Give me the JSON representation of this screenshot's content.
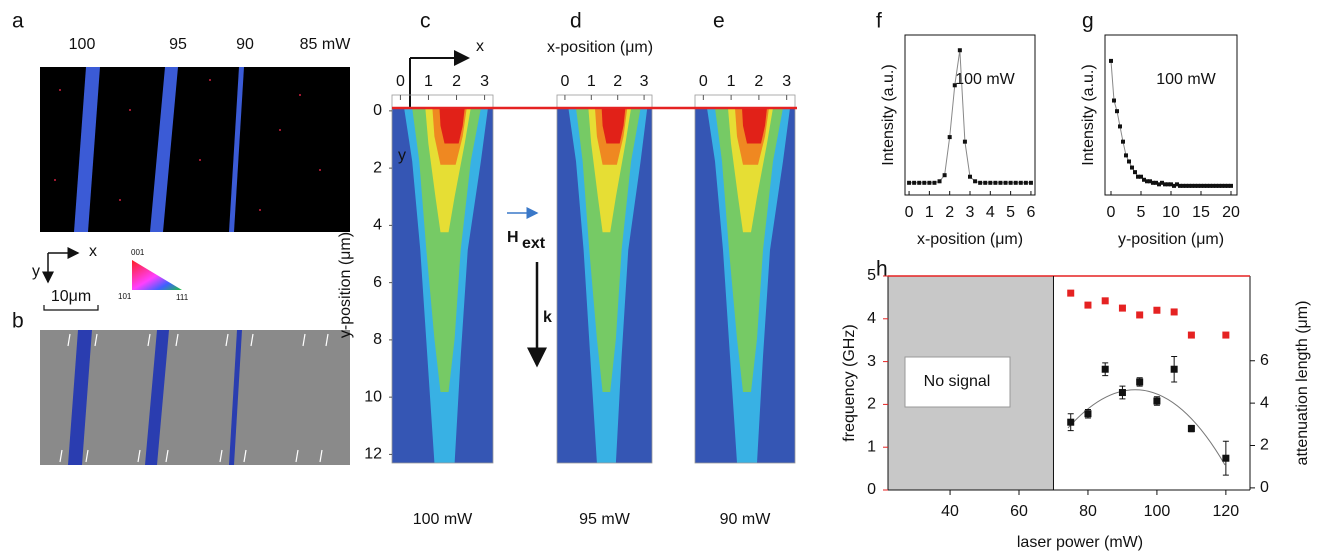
{
  "panel_labels": [
    "a",
    "b",
    "c",
    "d",
    "e",
    "f",
    "g",
    "h"
  ],
  "panel_a": {
    "powers": [
      "100",
      "95",
      "90",
      "85 mW"
    ],
    "axis_x": "x",
    "axis_y": "y",
    "scale_bar": "10μm",
    "triangle": [
      "001",
      "101",
      "111"
    ]
  },
  "maps": {
    "axis_x": "x",
    "axis_y": "y",
    "x_label": "x-position (μm)",
    "y_label": "y-position (μm)",
    "xlim": [
      -0.3,
      3.3
    ],
    "xticks": [
      0,
      1,
      2,
      3
    ],
    "ylim": [
      -0.1,
      12.3
    ],
    "yticks": [
      0,
      2,
      4,
      6,
      8,
      10,
      12
    ],
    "powers": [
      "100 mW",
      "95 mW",
      "90 mW"
    ],
    "field": "H",
    "field_sub": "ext",
    "wave": "k"
  },
  "chart_data": [
    {
      "type": "line",
      "title": "100 mW",
      "xlabel": "x-position (μm)",
      "ylabel": "Intensity (a.u.)",
      "color": "#111",
      "x": [
        0,
        0.25,
        0.5,
        0.75,
        1,
        1.25,
        1.5,
        1.75,
        2,
        2.25,
        2.5,
        2.75,
        3,
        3.25,
        3.5,
        3.75,
        4,
        4.25,
        4.5,
        4.75,
        5,
        5.25,
        5.5,
        5.75,
        6
      ],
      "values": [
        0.08,
        0.08,
        0.08,
        0.08,
        0.08,
        0.08,
        0.09,
        0.13,
        0.38,
        0.72,
        0.95,
        0.35,
        0.12,
        0.09,
        0.08,
        0.08,
        0.08,
        0.08,
        0.08,
        0.08,
        0.08,
        0.08,
        0.08,
        0.08,
        0.08
      ],
      "xlim": [
        -0.2,
        6.2
      ],
      "xticks": [
        0,
        1,
        2,
        3,
        4,
        5,
        6
      ],
      "ylim": [
        0,
        1.05
      ]
    },
    {
      "type": "line",
      "title": "100 mW",
      "xlabel": "y-position (μm)",
      "ylabel": "Intensity (a.u.)",
      "color": "#111",
      "x": [
        0,
        0.5,
        1,
        1.5,
        2,
        2.5,
        3,
        3.5,
        4,
        4.5,
        5,
        5.5,
        6,
        6.5,
        7,
        7.5,
        8,
        8.5,
        9,
        9.5,
        10,
        10.5,
        11,
        11.5,
        12,
        12.5,
        13,
        13.5,
        14,
        14.5,
        15,
        15.5,
        16,
        16.5,
        17,
        17.5,
        18,
        18.5,
        19,
        19.5,
        20
      ],
      "values": [
        0.88,
        0.62,
        0.55,
        0.45,
        0.35,
        0.26,
        0.22,
        0.18,
        0.15,
        0.12,
        0.12,
        0.1,
        0.09,
        0.09,
        0.08,
        0.08,
        0.07,
        0.08,
        0.07,
        0.07,
        0.07,
        0.06,
        0.07,
        0.06,
        0.06,
        0.06,
        0.06,
        0.06,
        0.06,
        0.06,
        0.06,
        0.06,
        0.06,
        0.06,
        0.06,
        0.06,
        0.06,
        0.06,
        0.06,
        0.06,
        0.06
      ],
      "xlim": [
        -1,
        21
      ],
      "xticks": [
        0,
        5,
        10,
        15,
        20
      ],
      "ylim": [
        0,
        1.05
      ]
    },
    {
      "type": "dual",
      "xlabel": "laser power (mW)",
      "x": [
        75,
        80,
        85,
        90,
        95,
        100,
        105,
        110,
        120
      ],
      "xlim": [
        22,
        127
      ],
      "xticks": [
        40,
        60,
        80,
        100,
        120
      ],
      "ylim": [
        0,
        5
      ],
      "yticks": [
        0,
        1,
        2,
        3,
        4,
        5
      ],
      "y2lim": [
        -0.1,
        10
      ],
      "y2ticks": [
        0,
        2,
        4,
        6
      ],
      "no_signal": {
        "text": "No signal",
        "x_end": 70
      },
      "series": [
        {
          "name": "frequency (GHz)",
          "color": "#e52222",
          "values": [
            4.6,
            4.32,
            4.42,
            4.25,
            4.09,
            4.2,
            4.16,
            3.62,
            3.62
          ]
        },
        {
          "name": "attenuation length (μm)",
          "color": "#111",
          "axis": "y2",
          "values": [
            3.1,
            3.5,
            5.6,
            4.5,
            5.0,
            4.1,
            5.6,
            2.8,
            1.4
          ],
          "errors": [
            0.4,
            0.2,
            0.3,
            0.3,
            0.2,
            0.2,
            0.6,
            0.15,
            0.8
          ]
        }
      ]
    }
  ]
}
